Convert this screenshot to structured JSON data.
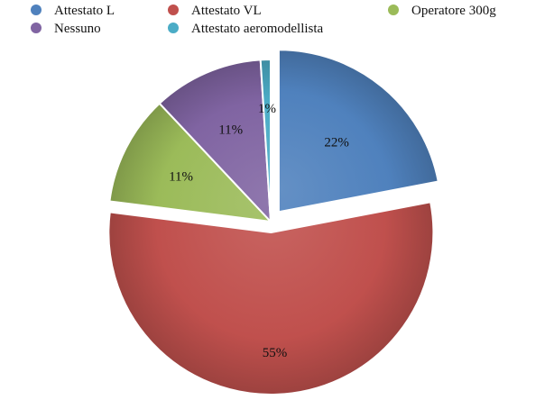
{
  "chart_data": {
    "type": "pie",
    "title": "",
    "legend_position": "top",
    "exploded": true,
    "categories": [
      "Attestato L",
      "Attestato VL",
      "Operatore 300g",
      "Nessuno",
      "Attestato aeromodellista"
    ],
    "values": [
      22,
      55,
      11,
      11,
      1
    ],
    "value_labels": [
      "22%",
      "55%",
      "11%",
      "11%",
      "1%"
    ],
    "colors": [
      "#4F81BD",
      "#C0504D",
      "#9BBB59",
      "#8064A2",
      "#4BACC6"
    ]
  }
}
